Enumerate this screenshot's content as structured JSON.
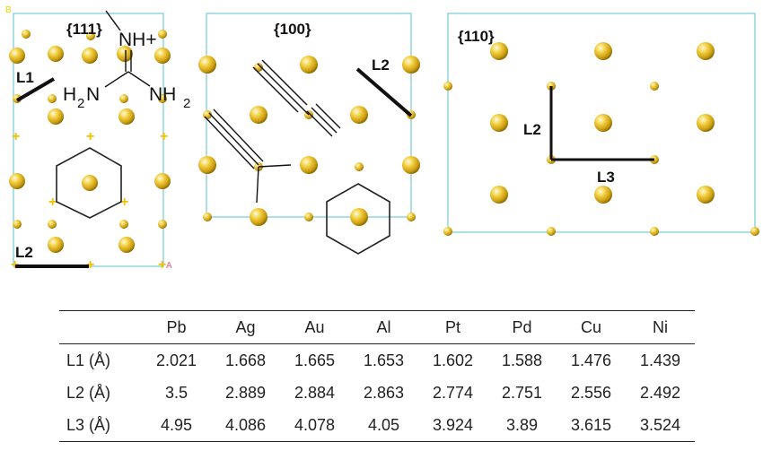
{
  "panels": [
    {
      "label": "{111}",
      "segments": [
        "L1",
        "L2"
      ]
    },
    {
      "label": "{100}",
      "segments": [
        "L2"
      ]
    },
    {
      "label": "{110}",
      "segments": [
        "L2",
        "L3"
      ]
    }
  ],
  "molecule": {
    "top_group": "NH+",
    "left_group": {
      "main": "H",
      "sub": "2",
      "tail": "N"
    },
    "right_group": {
      "main": "NH",
      "sub": "2"
    }
  },
  "corner_marks": {
    "b": "B",
    "a": "A"
  },
  "table": {
    "headers": [
      "",
      "Pb",
      "Ag",
      "Au",
      "Al",
      "Pt",
      "Pd",
      "Cu",
      "Ni"
    ],
    "rows": [
      [
        "L1 (Å)",
        "2.021",
        "1.668",
        "1.665",
        "1.653",
        "1.602",
        "1.588",
        "1.476",
        "1.439"
      ],
      [
        "L2 (Å)",
        "3.5",
        "2.889",
        "2.884",
        "2.863",
        "2.774",
        "2.751",
        "2.556",
        "2.492"
      ],
      [
        "L3 (Å)",
        "4.95",
        "4.086",
        "4.078",
        "4.05",
        "3.924",
        "3.89",
        "3.615",
        "3.524"
      ]
    ]
  },
  "colors": {
    "atom": "#e8b81c",
    "cell_border": "#7fd0d8",
    "marker": "#f2c200",
    "text": "#111111"
  }
}
